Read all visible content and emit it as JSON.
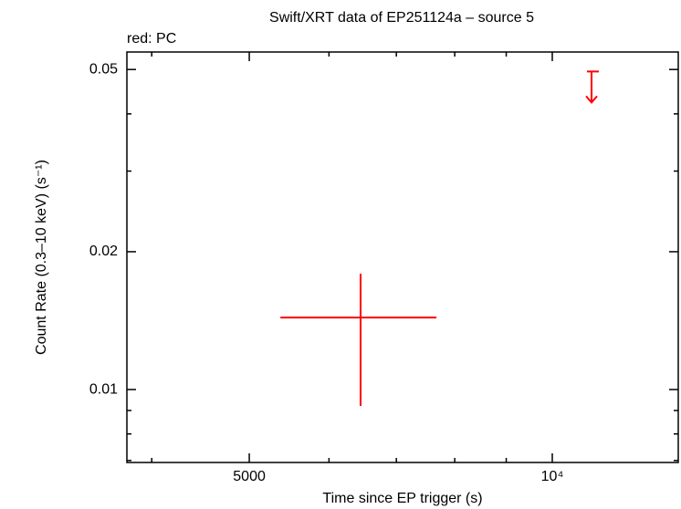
{
  "chart_data": {
    "type": "scatter",
    "title": "Swift/XRT data of EP251124a – source 5",
    "subtitle": "red: PC",
    "x_label": "Time since EP trigger (s)",
    "y_label": "Count Rate (0.3–10 keV) (s⁻¹)",
    "log_x": true,
    "log_y": true,
    "xlim": [
      3779,
      13340
    ],
    "ylim": [
      0.00693,
      0.0546
    ],
    "xticks": [
      5000,
      {
        "value": 10000,
        "label": "10⁴"
      }
    ],
    "yticks": [
      0.01,
      0.02,
      0.05
    ],
    "xminor_ticks": [
      4000,
      6000,
      7000,
      8000,
      9000
    ],
    "yminor_ticks": [
      0.007,
      0.008,
      0.009,
      0.03,
      0.04
    ],
    "color": "#ff0000",
    "points": {
      "x": [
        6450
      ],
      "x_low": [
        5369
      ],
      "x_high": [
        7672
      ],
      "y": [
        0.01436
      ],
      "y_low": [
        0.00921
      ],
      "y_high": [
        0.0179
      ]
    },
    "upper_limits": {
      "x": [
        10940
      ],
      "x_low": [
        10826
      ],
      "x_high": [
        11124
      ],
      "y": [
        0.0495
      ]
    }
  }
}
